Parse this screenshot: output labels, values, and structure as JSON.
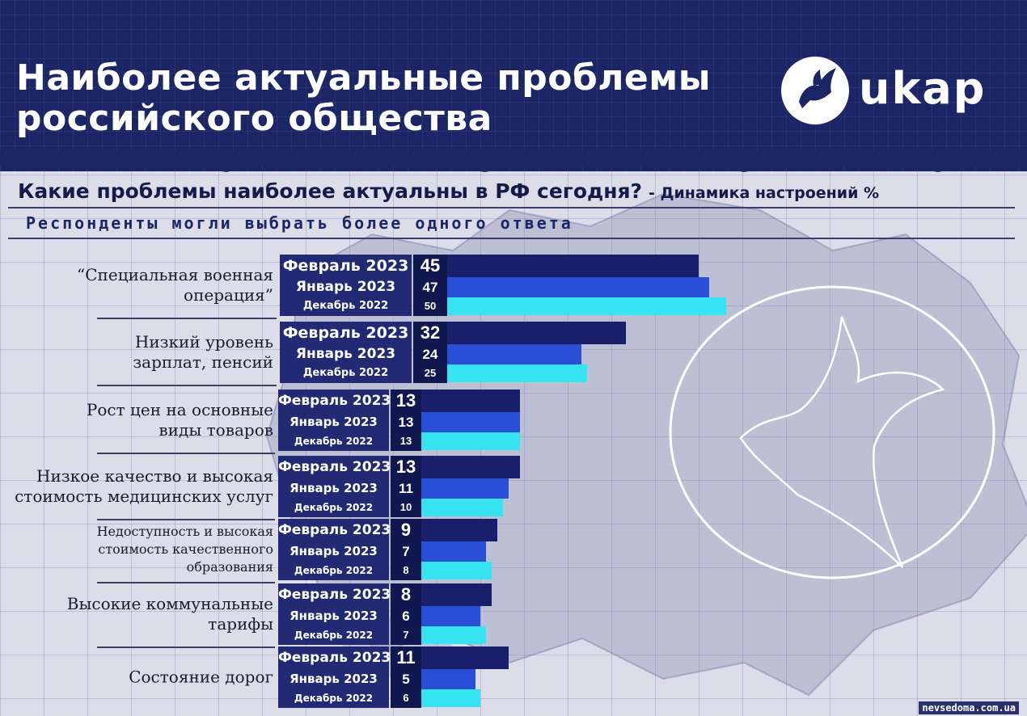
{
  "title_lines": [
    "Наиболее актуальные проблемы",
    "российского общества"
  ],
  "logo_text": "ukap",
  "question": "Какие проблемы наиболее актуальны в РФ сегодня?",
  "dynamic_note": "- Динамика настроений %",
  "subtitle": "Респонденты могли выбрать более одного ответа",
  "credit": "nevsedoma.com.ua",
  "colors": {
    "header_bg": "#1c2566",
    "feb": "#1a1f6b",
    "jan": "#2a4fd6",
    "dec": "#35e4f0",
    "date_box": "#222a74",
    "num_box": "#11174f"
  },
  "icons": [
    "dove-logo-icon",
    "dove-outline-icon"
  ],
  "chart_data": {
    "type": "bar",
    "orientation": "horizontal",
    "title": "Какие проблемы наиболее актуальны в РФ сегодня?",
    "categories": [
      "“Специальная военная операция”",
      "Низкий уровень зарплат, пенсий",
      "Рост цен на основные виды товаров",
      "Низкое качество и высокая стоимость медицинских услуг",
      "Недоступность и высокая стоимость качественного образования",
      "Высокие коммунальные тарифы",
      "Состояние дорог"
    ],
    "category_lines": [
      [
        "“Специальная военная",
        "операция”"
      ],
      [
        "Низкий уровень",
        "зарплат, пенсий"
      ],
      [
        "Рост цен на основные",
        "виды товаров"
      ],
      [
        "Низкое качество и высокая",
        "стоимость медицинских услуг"
      ],
      [
        "Недоступность и высокая",
        "стоимость качественного",
        "образования"
      ],
      [
        "Высокие коммунальные",
        "тарифы"
      ],
      [
        "Состояние дорог"
      ]
    ],
    "series": [
      {
        "name": "Февраль 2023",
        "values": [
          45,
          32,
          13,
          13,
          9,
          8,
          11
        ]
      },
      {
        "name": "Январь 2023",
        "values": [
          47,
          24,
          13,
          11,
          7,
          6,
          5
        ]
      },
      {
        "name": "Декабрь 2022",
        "values": [
          50,
          25,
          13,
          10,
          8,
          7,
          6
        ]
      }
    ],
    "ylabel": "%",
    "grid": false,
    "legend": "none"
  }
}
